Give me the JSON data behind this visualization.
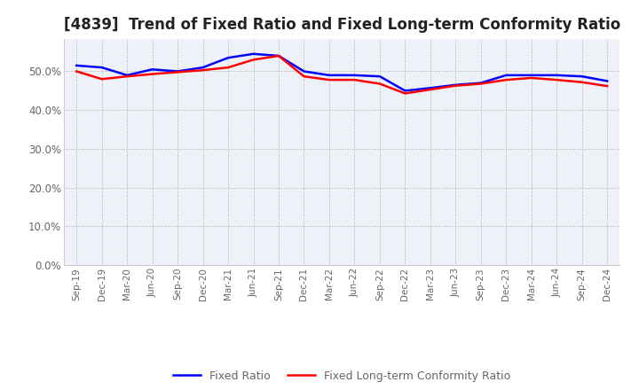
{
  "title": "[4839]  Trend of Fixed Ratio and Fixed Long-term Conformity Ratio",
  "x_labels": [
    "Sep-19",
    "Dec-19",
    "Mar-20",
    "Jun-20",
    "Sep-20",
    "Dec-20",
    "Mar-21",
    "Jun-21",
    "Sep-21",
    "Dec-21",
    "Mar-22",
    "Jun-22",
    "Sep-22",
    "Dec-22",
    "Mar-23",
    "Jun-23",
    "Sep-23",
    "Dec-23",
    "Mar-24",
    "Jun-24",
    "Sep-24",
    "Dec-24"
  ],
  "fixed_ratio": [
    0.515,
    0.51,
    0.49,
    0.505,
    0.5,
    0.51,
    0.535,
    0.545,
    0.54,
    0.5,
    0.49,
    0.49,
    0.487,
    0.45,
    0.457,
    0.465,
    0.47,
    0.49,
    0.49,
    0.49,
    0.487,
    0.475
  ],
  "fixed_lt_ratio": [
    0.5,
    0.48,
    0.487,
    0.493,
    0.498,
    0.503,
    0.51,
    0.53,
    0.54,
    0.487,
    0.478,
    0.478,
    0.468,
    0.443,
    0.453,
    0.463,
    0.468,
    0.478,
    0.483,
    0.478,
    0.472,
    0.462
  ],
  "fixed_ratio_color": "#0000ff",
  "fixed_lt_ratio_color": "#ff0000",
  "ylim_min": 0.0,
  "ylim_max": 0.5834,
  "yticks": [
    0.0,
    0.1,
    0.2,
    0.3,
    0.4,
    0.5
  ],
  "grid_color": "#aaaaaa",
  "plot_bg_color": "#eef2f8",
  "background_color": "#ffffff",
  "title_fontsize": 12,
  "tick_label_color": "#666666",
  "legend_fixed_ratio": "Fixed Ratio",
  "legend_fixed_lt_ratio": "Fixed Long-term Conformity Ratio",
  "line_width": 1.8
}
